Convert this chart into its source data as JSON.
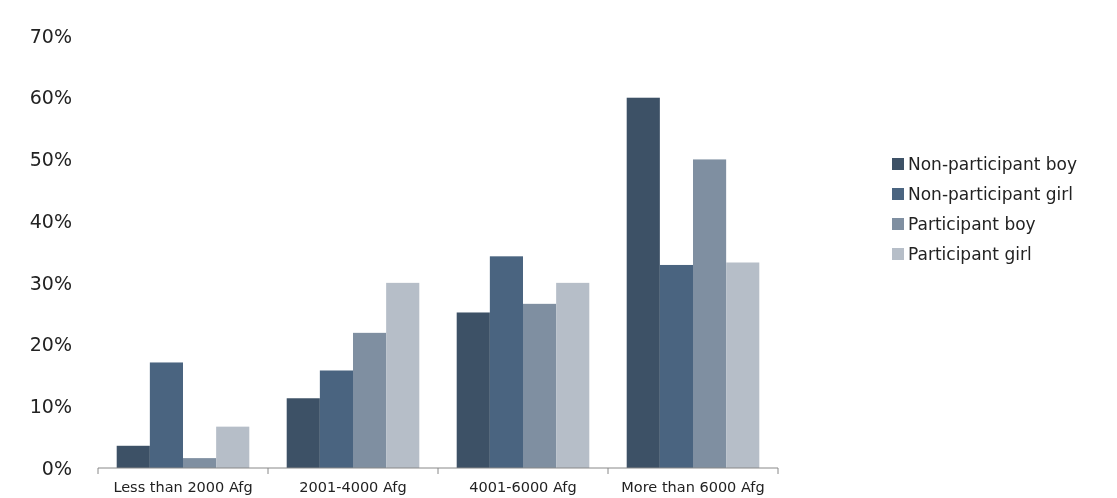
{
  "chart_data": {
    "type": "bar",
    "categories": [
      "Less than 2000 Afg",
      "2001-4000 Afg",
      "4001-6000 Afg",
      "More than 6000 Afg"
    ],
    "series": [
      {
        "name": "Non-participant boy",
        "color": "#3d5166",
        "values": [
          3.6,
          11.3,
          25.2,
          60
        ]
      },
      {
        "name": "Non-participant girl",
        "color": "#4a6480",
        "values": [
          17.1,
          15.8,
          34.3,
          32.9
        ]
      },
      {
        "name": "Participant boy",
        "color": "#7f8fa1",
        "values": [
          1.6,
          21.9,
          26.6,
          50
        ]
      },
      {
        "name": "Participant girl",
        "color": "#b6bec8",
        "values": [
          6.7,
          30,
          30,
          33.3
        ]
      }
    ],
    "ylim": [
      0,
      70
    ],
    "yticks": [
      {
        "value": 0,
        "label": "0%"
      },
      {
        "value": 10,
        "label": "10%"
      },
      {
        "value": 20,
        "label": "20%"
      },
      {
        "value": 30,
        "label": "30%"
      },
      {
        "value": 40,
        "label": "40%"
      },
      {
        "value": 50,
        "label": "50%"
      },
      {
        "value": 60,
        "label": "60%"
      },
      {
        "value": 70,
        "label": "70%"
      }
    ],
    "legend": "right",
    "grid": false
  }
}
